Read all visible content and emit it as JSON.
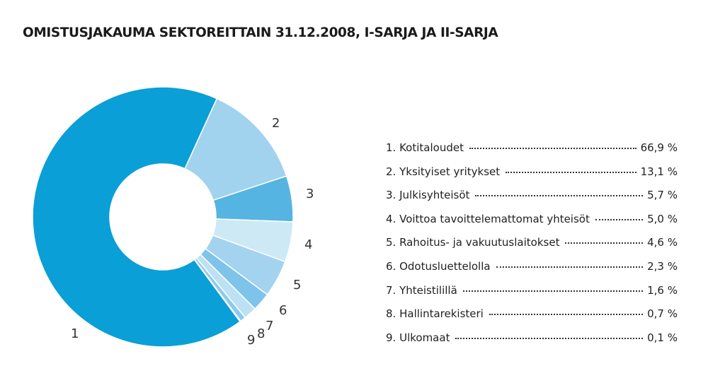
{
  "chart_data": {
    "type": "pie",
    "title": "OMISTUSJAKAUMA SEKTOREITTAIN 31.12.2008, I-SARJA JA II-SARJA",
    "donut": true,
    "unit": "%",
    "slices": [
      {
        "id": "1",
        "label": "Kotitaloudet",
        "value": 66.9,
        "value_text": "66,9 %",
        "color": "#0a9fd6"
      },
      {
        "id": "2",
        "label": "Yksityiset yritykset",
        "value": 13.1,
        "value_text": "13,1 %",
        "color": "#a1d2ee"
      },
      {
        "id": "3",
        "label": "Julkisyhteisöt",
        "value": 5.7,
        "value_text": "5,7 %",
        "color": "#55b4e2"
      },
      {
        "id": "4",
        "label": "Voittoa tavoittelemattomat yhteisöt",
        "value": 5.0,
        "value_text": "5,0 %",
        "color": "#cde9f6"
      },
      {
        "id": "5",
        "label": "Rahoitus- ja vakuutuslaitokset",
        "value": 4.6,
        "value_text": "4,6 %",
        "color": "#a4d3ef"
      },
      {
        "id": "6",
        "label": "Odotusluettelolla",
        "value": 2.3,
        "value_text": "2,3 %",
        "color": "#7ec3ea"
      },
      {
        "id": "7",
        "label": "Yhteistilillä",
        "value": 1.6,
        "value_text": "1,6 %",
        "color": "#bde1f4"
      },
      {
        "id": "8",
        "label": "Hallintarekisteri",
        "value": 0.7,
        "value_text": "0,7 %",
        "color": "#8ccbed"
      },
      {
        "id": "9",
        "label": "Ulkomaat",
        "value": 0.1,
        "value_text": "0,1 %",
        "color": "#3aa8dc"
      }
    ],
    "legend_placement": "right"
  }
}
